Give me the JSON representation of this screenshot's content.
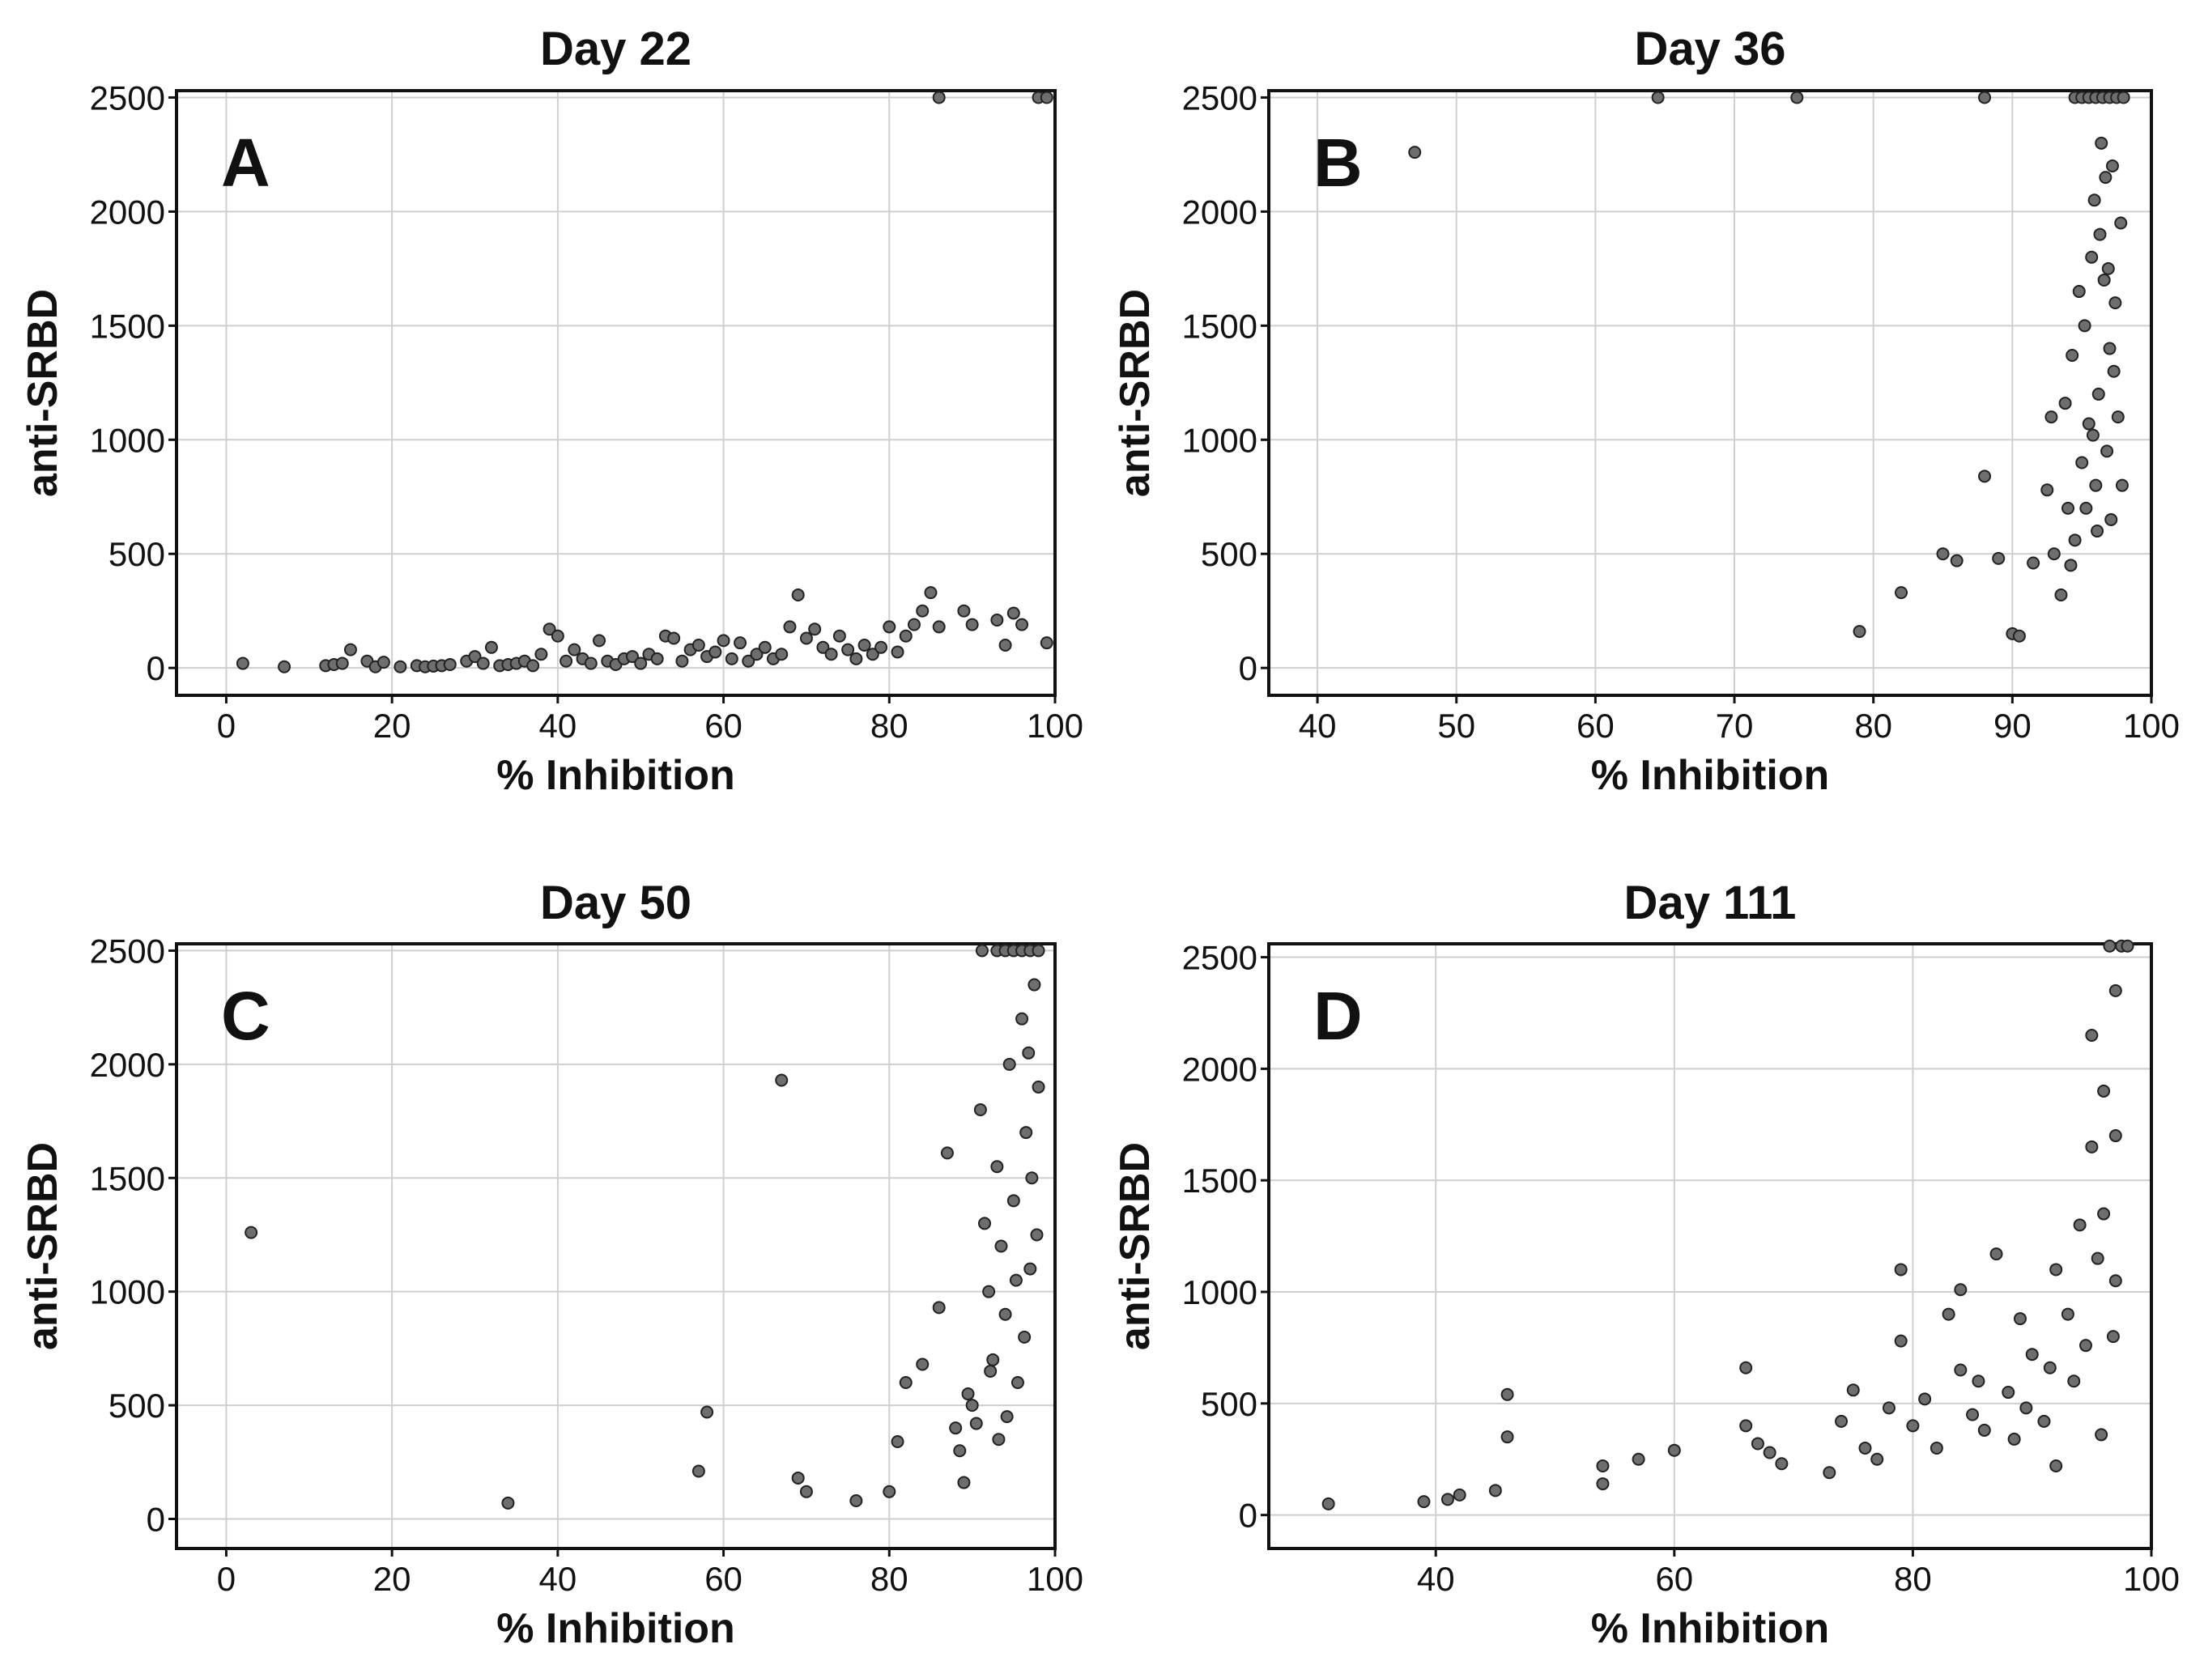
{
  "chart_data": [
    {
      "type": "scatter",
      "panel_label": "A",
      "title": "Day 22",
      "xlabel": "% Inhibition",
      "ylabel": "anti-SRBD",
      "xlim": [
        -6,
        100
      ],
      "ylim": [
        -120,
        2530
      ],
      "xticks": [
        0,
        20,
        40,
        60,
        80,
        100
      ],
      "yticks": [
        0,
        500,
        1000,
        1500,
        2000,
        2500
      ],
      "grid": true,
      "points": [
        [
          2,
          20
        ],
        [
          7,
          5
        ],
        [
          12,
          10
        ],
        [
          13,
          15
        ],
        [
          14,
          20
        ],
        [
          15,
          80
        ],
        [
          17,
          30
        ],
        [
          18,
          5
        ],
        [
          19,
          25
        ],
        [
          21,
          5
        ],
        [
          23,
          10
        ],
        [
          24,
          5
        ],
        [
          25,
          8
        ],
        [
          26,
          10
        ],
        [
          27,
          15
        ],
        [
          29,
          30
        ],
        [
          30,
          50
        ],
        [
          31,
          20
        ],
        [
          32,
          90
        ],
        [
          33,
          10
        ],
        [
          34,
          15
        ],
        [
          35,
          20
        ],
        [
          36,
          30
        ],
        [
          37,
          10
        ],
        [
          38,
          60
        ],
        [
          39,
          170
        ],
        [
          40,
          140
        ],
        [
          41,
          30
        ],
        [
          42,
          80
        ],
        [
          43,
          40
        ],
        [
          44,
          20
        ],
        [
          45,
          120
        ],
        [
          46,
          30
        ],
        [
          47,
          15
        ],
        [
          48,
          40
        ],
        [
          49,
          50
        ],
        [
          50,
          20
        ],
        [
          51,
          60
        ],
        [
          52,
          40
        ],
        [
          53,
          140
        ],
        [
          54,
          130
        ],
        [
          55,
          30
        ],
        [
          56,
          80
        ],
        [
          57,
          100
        ],
        [
          58,
          50
        ],
        [
          59,
          70
        ],
        [
          60,
          120
        ],
        [
          61,
          40
        ],
        [
          62,
          110
        ],
        [
          63,
          30
        ],
        [
          64,
          60
        ],
        [
          65,
          90
        ],
        [
          66,
          40
        ],
        [
          67,
          60
        ],
        [
          68,
          180
        ],
        [
          69,
          320
        ],
        [
          70,
          130
        ],
        [
          71,
          170
        ],
        [
          72,
          90
        ],
        [
          73,
          60
        ],
        [
          74,
          140
        ],
        [
          75,
          80
        ],
        [
          76,
          40
        ],
        [
          77,
          100
        ],
        [
          78,
          60
        ],
        [
          79,
          90
        ],
        [
          80,
          180
        ],
        [
          81,
          70
        ],
        [
          82,
          140
        ],
        [
          83,
          190
        ],
        [
          84,
          250
        ],
        [
          85,
          330
        ],
        [
          86,
          180
        ],
        [
          89,
          250
        ],
        [
          90,
          190
        ],
        [
          93,
          210
        ],
        [
          94,
          100
        ],
        [
          95,
          240
        ],
        [
          96,
          190
        ],
        [
          99,
          110
        ],
        [
          86,
          2500
        ],
        [
          98,
          2500
        ],
        [
          99,
          2500
        ]
      ]
    },
    {
      "type": "scatter",
      "panel_label": "B",
      "title": "Day 36",
      "xlabel": "% Inhibition",
      "ylabel": "anti-SRBD",
      "xlim": [
        36.5,
        100
      ],
      "ylim": [
        -120,
        2530
      ],
      "xticks": [
        40,
        50,
        60,
        70,
        80,
        90,
        100
      ],
      "yticks": [
        0,
        500,
        1000,
        1500,
        2000,
        2500
      ],
      "grid": true,
      "points": [
        [
          47,
          2260
        ],
        [
          64.5,
          2500
        ],
        [
          74.5,
          2500
        ],
        [
          88,
          2500
        ],
        [
          94.5,
          2500
        ],
        [
          95,
          2500
        ],
        [
          95.5,
          2500
        ],
        [
          96,
          2500
        ],
        [
          96.5,
          2500
        ],
        [
          97,
          2500
        ],
        [
          97.5,
          2500
        ],
        [
          98,
          2500
        ],
        [
          79,
          160
        ],
        [
          82,
          330
        ],
        [
          85,
          500
        ],
        [
          86,
          470
        ],
        [
          88,
          840
        ],
        [
          89,
          480
        ],
        [
          90,
          150
        ],
        [
          90.5,
          140
        ],
        [
          91.5,
          460
        ],
        [
          92.5,
          780
        ],
        [
          92.8,
          1100
        ],
        [
          93,
          500
        ],
        [
          93.5,
          320
        ],
        [
          93.8,
          1160
        ],
        [
          94,
          700
        ],
        [
          94.3,
          1370
        ],
        [
          94.5,
          560
        ],
        [
          94.8,
          1650
        ],
        [
          95,
          900
        ],
        [
          95.2,
          1500
        ],
        [
          95.5,
          1070
        ],
        [
          95.7,
          1800
        ],
        [
          95.9,
          2050
        ],
        [
          96,
          800
        ],
        [
          96.2,
          1200
        ],
        [
          96.4,
          2300
        ],
        [
          96.6,
          1700
        ],
        [
          96.8,
          950
        ],
        [
          97,
          1400
        ],
        [
          97.2,
          2200
        ],
        [
          97.4,
          1600
        ],
        [
          97.6,
          1100
        ],
        [
          97.8,
          1950
        ],
        [
          97.9,
          800
        ],
        [
          96.1,
          600
        ],
        [
          95.3,
          700
        ],
        [
          94.2,
          450
        ],
        [
          96.7,
          2150
        ],
        [
          97.3,
          1300
        ],
        [
          95.8,
          1020
        ],
        [
          96.3,
          1900
        ],
        [
          97.1,
          650
        ],
        [
          96.9,
          1750
        ]
      ]
    },
    {
      "type": "scatter",
      "panel_label": "C",
      "title": "Day 50",
      "xlabel": "% Inhibition",
      "ylabel": "anti-SRBD",
      "xlim": [
        -6,
        100
      ],
      "ylim": [
        -130,
        2530
      ],
      "xticks": [
        0,
        20,
        40,
        60,
        80,
        100
      ],
      "yticks": [
        0,
        500,
        1000,
        1500,
        2000,
        2500
      ],
      "grid": true,
      "points": [
        [
          3,
          1260
        ],
        [
          34,
          70
        ],
        [
          57,
          210
        ],
        [
          58,
          470
        ],
        [
          67,
          1930
        ],
        [
          69,
          180
        ],
        [
          70,
          120
        ],
        [
          76,
          80
        ],
        [
          80,
          120
        ],
        [
          81,
          340
        ],
        [
          82,
          600
        ],
        [
          84,
          680
        ],
        [
          86,
          930
        ],
        [
          87,
          1610
        ],
        [
          88,
          400
        ],
        [
          89,
          160
        ],
        [
          90,
          500
        ],
        [
          91,
          1800
        ],
        [
          91.5,
          1300
        ],
        [
          92,
          1000
        ],
        [
          92.5,
          700
        ],
        [
          93,
          1550
        ],
        [
          93.5,
          1200
        ],
        [
          94,
          900
        ],
        [
          94.5,
          2000
        ],
        [
          95,
          1400
        ],
        [
          95.5,
          600
        ],
        [
          96,
          2200
        ],
        [
          96.5,
          1700
        ],
        [
          97,
          1100
        ],
        [
          97.5,
          2350
        ],
        [
          98,
          1900
        ],
        [
          96.3,
          800
        ],
        [
          95.3,
          1050
        ],
        [
          94.2,
          450
        ],
        [
          93.2,
          350
        ],
        [
          92.2,
          650
        ],
        [
          91.2,
          2500
        ],
        [
          93,
          2500
        ],
        [
          94,
          2500
        ],
        [
          95,
          2500
        ],
        [
          96,
          2500
        ],
        [
          97,
          2500
        ],
        [
          98,
          2500
        ],
        [
          88.5,
          300
        ],
        [
          89.5,
          550
        ],
        [
          90.5,
          420
        ],
        [
          97.2,
          1500
        ],
        [
          96.8,
          2050
        ],
        [
          97.8,
          1250
        ]
      ]
    },
    {
      "type": "scatter",
      "panel_label": "D",
      "title": "Day 111",
      "xlabel": "% Inhibition",
      "ylabel": "anti-SRBD",
      "xlim": [
        26,
        100
      ],
      "ylim": [
        -150,
        2560
      ],
      "xticks": [
        40,
        60,
        80,
        100
      ],
      "yticks": [
        0,
        500,
        1000,
        1500,
        2000,
        2500
      ],
      "grid": true,
      "points": [
        [
          31,
          50
        ],
        [
          39,
          60
        ],
        [
          41,
          70
        ],
        [
          42,
          90
        ],
        [
          45,
          110
        ],
        [
          46,
          350
        ],
        [
          46,
          540
        ],
        [
          54,
          140
        ],
        [
          54,
          220
        ],
        [
          57,
          250
        ],
        [
          60,
          290
        ],
        [
          66,
          660
        ],
        [
          66,
          400
        ],
        [
          67,
          320
        ],
        [
          68,
          280
        ],
        [
          69,
          230
        ],
        [
          73,
          190
        ],
        [
          74,
          420
        ],
        [
          75,
          560
        ],
        [
          76,
          300
        ],
        [
          77,
          250
        ],
        [
          78,
          480
        ],
        [
          79,
          1100
        ],
        [
          79,
          780
        ],
        [
          80,
          400
        ],
        [
          81,
          520
        ],
        [
          82,
          300
        ],
        [
          83,
          900
        ],
        [
          84,
          650
        ],
        [
          84,
          1010
        ],
        [
          85,
          450
        ],
        [
          86,
          380
        ],
        [
          87,
          1170
        ],
        [
          88,
          550
        ],
        [
          89,
          880
        ],
        [
          90,
          720
        ],
        [
          91,
          420
        ],
        [
          92,
          1100
        ],
        [
          92,
          220
        ],
        [
          93,
          900
        ],
        [
          94,
          1300
        ],
        [
          95,
          1650
        ],
        [
          95,
          2150
        ],
        [
          96,
          1900
        ],
        [
          96,
          1350
        ],
        [
          97,
          2350
        ],
        [
          97,
          1700
        ],
        [
          97.5,
          2550
        ],
        [
          98,
          2550
        ],
        [
          96.5,
          2550
        ],
        [
          97,
          1050
        ],
        [
          94.5,
          760
        ],
        [
          93.5,
          600
        ],
        [
          95.5,
          1150
        ],
        [
          96.8,
          800
        ],
        [
          95.8,
          360
        ],
        [
          85.5,
          600
        ],
        [
          88.5,
          340
        ],
        [
          91.5,
          660
        ],
        [
          89.5,
          480
        ]
      ]
    }
  ]
}
